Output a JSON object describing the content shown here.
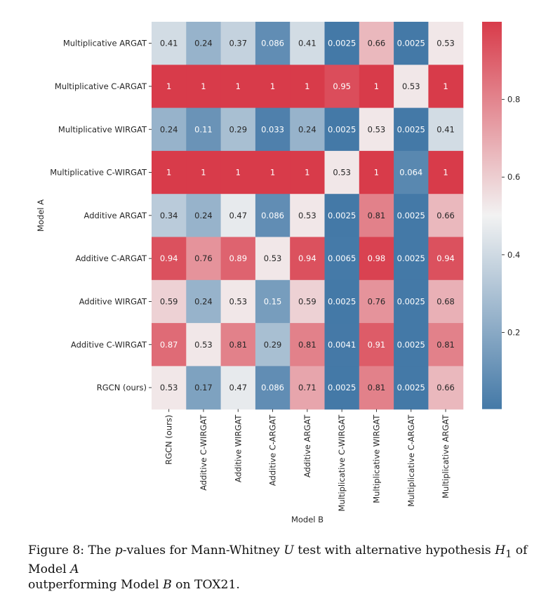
{
  "chart_data": {
    "type": "heatmap",
    "ylabel": "Model A",
    "xlabel": "Model B",
    "rows": [
      "Multiplicative ARGAT",
      "Multiplicative C-ARGAT",
      "Multiplicative WIRGAT",
      "Multiplicative C-WIRGAT",
      "Additive ARGAT",
      "Additive C-ARGAT",
      "Additive WIRGAT",
      "Additive C-WIRGAT",
      "RGCN (ours)"
    ],
    "columns": [
      "RGCN (ours)",
      "Additive C-WIRGAT",
      "Additive WIRGAT",
      "Additive C-ARGAT",
      "Additive ARGAT",
      "Multiplicative C-WIRGAT",
      "Multiplicative WIRGAT",
      "Multiplicative C-ARGAT",
      "Multiplicative ARGAT"
    ],
    "values": [
      [
        0.41,
        0.24,
        0.37,
        0.086,
        0.41,
        0.0025,
        0.66,
        0.0025,
        0.53
      ],
      [
        1,
        1,
        1,
        1,
        1,
        0.95,
        1,
        0.53,
        1
      ],
      [
        0.24,
        0.11,
        0.29,
        0.033,
        0.24,
        0.0025,
        0.53,
        0.0025,
        0.41
      ],
      [
        1,
        1,
        1,
        1,
        1,
        0.53,
        1,
        0.064,
        1
      ],
      [
        0.34,
        0.24,
        0.47,
        0.086,
        0.53,
        0.0025,
        0.81,
        0.0025,
        0.66
      ],
      [
        0.94,
        0.76,
        0.89,
        0.53,
        0.94,
        0.0065,
        0.98,
        0.0025,
        0.94
      ],
      [
        0.59,
        0.24,
        0.53,
        0.15,
        0.59,
        0.0025,
        0.76,
        0.0025,
        0.68
      ],
      [
        0.87,
        0.53,
        0.81,
        0.29,
        0.81,
        0.0041,
        0.91,
        0.0025,
        0.81
      ],
      [
        0.53,
        0.17,
        0.47,
        0.086,
        0.71,
        0.0025,
        0.81,
        0.0025,
        0.66
      ]
    ],
    "labels": [
      [
        "0.41",
        "0.24",
        "0.37",
        "0.086",
        "0.41",
        "0.0025",
        "0.66",
        "0.0025",
        "0.53"
      ],
      [
        "1",
        "1",
        "1",
        "1",
        "1",
        "0.95",
        "1",
        "0.53",
        "1"
      ],
      [
        "0.24",
        "0.11",
        "0.29",
        "0.033",
        "0.24",
        "0.0025",
        "0.53",
        "0.0025",
        "0.41"
      ],
      [
        "1",
        "1",
        "1",
        "1",
        "1",
        "0.53",
        "1",
        "0.064",
        "1"
      ],
      [
        "0.34",
        "0.24",
        "0.47",
        "0.086",
        "0.53",
        "0.0025",
        "0.81",
        "0.0025",
        "0.66"
      ],
      [
        "0.94",
        "0.76",
        "0.89",
        "0.53",
        "0.94",
        "0.0065",
        "0.98",
        "0.0025",
        "0.94"
      ],
      [
        "0.59",
        "0.24",
        "0.53",
        "0.15",
        "0.59",
        "0.0025",
        "0.76",
        "0.0025",
        "0.68"
      ],
      [
        "0.87",
        "0.53",
        "0.81",
        "0.29",
        "0.81",
        "0.0041",
        "0.91",
        "0.0025",
        "0.81"
      ],
      [
        "0.53",
        "0.17",
        "0.47",
        "0.086",
        "0.71",
        "0.0025",
        "0.81",
        "0.0025",
        "0.66"
      ]
    ],
    "colorbar": {
      "range": [
        0.0025,
        1
      ],
      "ticks": [
        0.2,
        0.4,
        0.6,
        0.8
      ],
      "tick_labels": [
        "0.2",
        "0.4",
        "0.6",
        "0.8"
      ],
      "cmap": "diverging blue-white-red",
      "low_color": "#4479a7",
      "mid_color": "#f2f2f2",
      "high_color": "#d83b4a"
    }
  },
  "caption": {
    "figure_label": "Figure 8:",
    "p1": "The ",
    "p_italic": "p",
    "p2": "-values for Mann-Whitney ",
    "u_italic": "U",
    "p3": " test with alternative hypothesis ",
    "h_italic": "H",
    "h_sub": "1",
    "p4": " of Model ",
    "a_italic": "A",
    "p5": "outperforming Model ",
    "b_italic": "B",
    "p6": " on TOX21."
  }
}
